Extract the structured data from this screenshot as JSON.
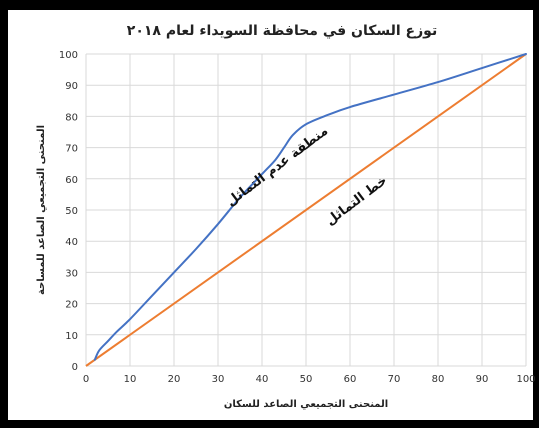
{
  "chart_data": {
    "type": "line",
    "title": "توزع السكان في محافظة السويداء لعام ٢٠١٨",
    "xlabel": "المنحنى التجميعي الصاعد للسكان",
    "ylabel": "المنحنى التجميعي الصاعد للمساحة",
    "xlim": [
      0,
      100
    ],
    "ylim": [
      0,
      100
    ],
    "x_ticks": [
      0,
      10,
      20,
      30,
      40,
      50,
      60,
      70,
      80,
      90,
      100
    ],
    "y_ticks": [
      0,
      10,
      20,
      30,
      40,
      50,
      60,
      70,
      80,
      90,
      100
    ],
    "grid": true,
    "colors": {
      "lorenz": "#4472c4",
      "equality": "#ed7d31"
    },
    "series": [
      {
        "x": [
          2,
          3,
          5,
          7,
          10,
          15,
          20,
          25,
          30,
          35,
          40,
          43,
          45,
          47,
          50,
          55,
          60,
          70,
          80,
          90,
          100
        ],
        "y": [
          2,
          5,
          8,
          11,
          15,
          22.5,
          30,
          37.5,
          45.5,
          54,
          61.5,
          66,
          70,
          74,
          77.5,
          80.5,
          83,
          87,
          91,
          95.5,
          100
        ]
      },
      {
        "x": [
          0,
          100
        ],
        "y": [
          0,
          100
        ]
      }
    ],
    "annotations": [
      {
        "text": "منطقة عدم التماثل",
        "x": 44,
        "y": 63
      },
      {
        "text": "خط التماثل",
        "x": 62,
        "y": 52
      }
    ]
  }
}
